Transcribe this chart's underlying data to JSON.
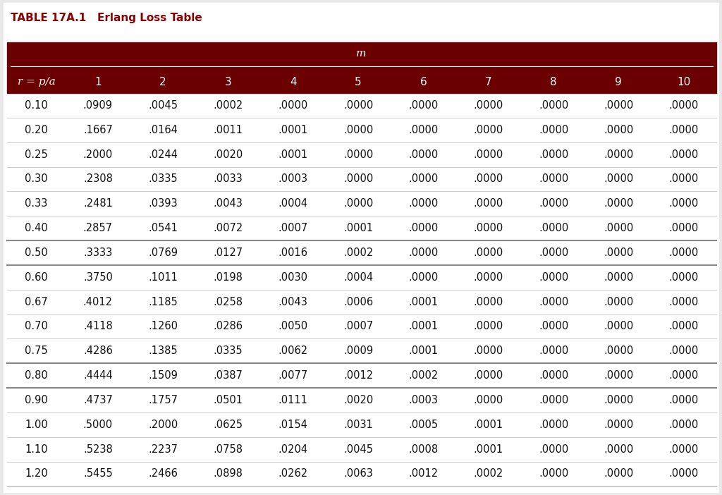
{
  "title": "TABLE 17A.1   Erlang Loss Table",
  "title_color": "#8B0000",
  "header_bg_color": "#6B0000",
  "header_text_color": "#FFFFFF",
  "col_header": [
    "r = p/a",
    "1",
    "2",
    "3",
    "4",
    "5",
    "6",
    "7",
    "8",
    "9",
    "10"
  ],
  "m_label": "m",
  "rows": [
    [
      "0.10",
      ".0909",
      ".0045",
      ".0002",
      ".0000",
      ".0000",
      ".0000",
      ".0000",
      ".0000",
      ".0000",
      ".0000"
    ],
    [
      "0.20",
      ".1667",
      ".0164",
      ".0011",
      ".0001",
      ".0000",
      ".0000",
      ".0000",
      ".0000",
      ".0000",
      ".0000"
    ],
    [
      "0.25",
      ".2000",
      ".0244",
      ".0020",
      ".0001",
      ".0000",
      ".0000",
      ".0000",
      ".0000",
      ".0000",
      ".0000"
    ],
    [
      "0.30",
      ".2308",
      ".0335",
      ".0033",
      ".0003",
      ".0000",
      ".0000",
      ".0000",
      ".0000",
      ".0000",
      ".0000"
    ],
    [
      "0.33",
      ".2481",
      ".0393",
      ".0043",
      ".0004",
      ".0000",
      ".0000",
      ".0000",
      ".0000",
      ".0000",
      ".0000"
    ],
    [
      "0.40",
      ".2857",
      ".0541",
      ".0072",
      ".0007",
      ".0001",
      ".0000",
      ".0000",
      ".0000",
      ".0000",
      ".0000"
    ],
    [
      "0.50",
      ".3333",
      ".0769",
      ".0127",
      ".0016",
      ".0002",
      ".0000",
      ".0000",
      ".0000",
      ".0000",
      ".0000"
    ],
    [
      "0.60",
      ".3750",
      ".1011",
      ".0198",
      ".0030",
      ".0004",
      ".0000",
      ".0000",
      ".0000",
      ".0000",
      ".0000"
    ],
    [
      "0.67",
      ".4012",
      ".1185",
      ".0258",
      ".0043",
      ".0006",
      ".0001",
      ".0000",
      ".0000",
      ".0000",
      ".0000"
    ],
    [
      "0.70",
      ".4118",
      ".1260",
      ".0286",
      ".0050",
      ".0007",
      ".0001",
      ".0000",
      ".0000",
      ".0000",
      ".0000"
    ],
    [
      "0.75",
      ".4286",
      ".1385",
      ".0335",
      ".0062",
      ".0009",
      ".0001",
      ".0000",
      ".0000",
      ".0000",
      ".0000"
    ],
    [
      "0.80",
      ".4444",
      ".1509",
      ".0387",
      ".0077",
      ".0012",
      ".0002",
      ".0000",
      ".0000",
      ".0000",
      ".0000"
    ],
    [
      "0.90",
      ".4737",
      ".1757",
      ".0501",
      ".0111",
      ".0020",
      ".0003",
      ".0000",
      ".0000",
      ".0000",
      ".0000"
    ],
    [
      "1.00",
      ".5000",
      ".2000",
      ".0625",
      ".0154",
      ".0031",
      ".0005",
      ".0001",
      ".0000",
      ".0000",
      ".0000"
    ],
    [
      "1.10",
      ".5238",
      ".2237",
      ".0758",
      ".0204",
      ".0045",
      ".0008",
      ".0001",
      ".0000",
      ".0000",
      ".0000"
    ],
    [
      "1.20",
      ".5455",
      ".2466",
      ".0898",
      ".0262",
      ".0063",
      ".0012",
      ".0002",
      ".0000",
      ".0000",
      ".0000"
    ]
  ],
  "bg_color": "#FFFFFF",
  "outer_bg_color": "#E8E8E8",
  "thick_line_after_rows": [
    5,
    6,
    10,
    11
  ],
  "table_text_color": "#111111",
  "fig_width": 10.24,
  "fig_height": 7.02,
  "dpi": 100,
  "title_fontsize": 11,
  "header_fontsize": 11,
  "data_fontsize": 10.5
}
